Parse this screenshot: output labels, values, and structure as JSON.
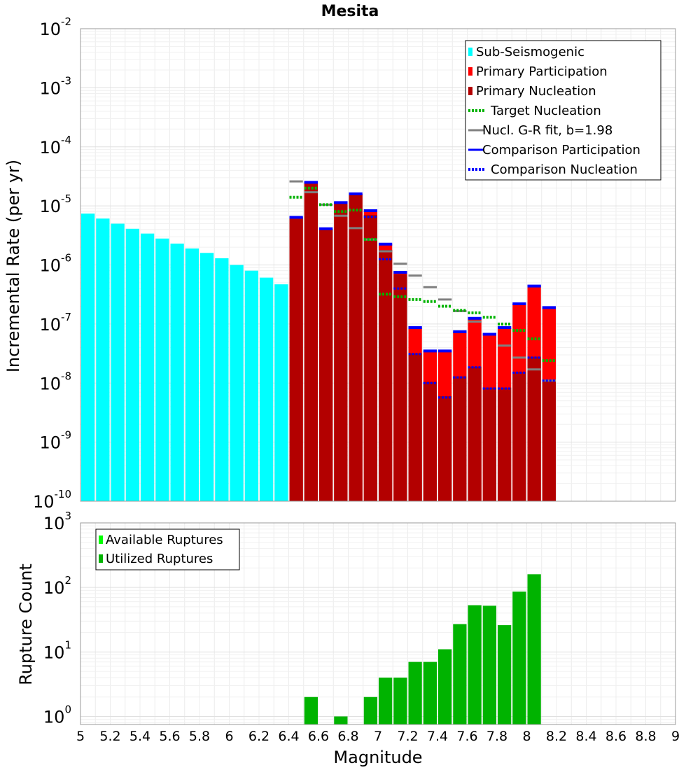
{
  "colors": {
    "sub_seismogenic": "#00ffff",
    "primary_participation": "#ff0000",
    "primary_nucleation": "#b30000",
    "target_nucleation": "#00b300",
    "gr_fit": "#808080",
    "comparison_participation": "#0000ff",
    "comparison_nucleation": "#0000ff",
    "available_ruptures": "#00ff00",
    "utilized_ruptures": "#00b300"
  },
  "chart_data": [
    {
      "type": "bar",
      "title": "Mesita",
      "xlabel": "",
      "ylabel": "Incremental Rate (per yr)",
      "yscale": "log",
      "ylim": [
        1e-10,
        0.01
      ],
      "xlim": [
        5,
        9
      ],
      "bin_width": 0.1,
      "ytick_labels": [
        {
          "base": "10",
          "exp": "-10",
          "value": 1e-10
        },
        {
          "base": "10",
          "exp": "-9",
          "value": 1e-09
        },
        {
          "base": "10",
          "exp": "-8",
          "value": 1e-08
        },
        {
          "base": "10",
          "exp": "-7",
          "value": 1e-07
        },
        {
          "base": "10",
          "exp": "-6",
          "value": 1e-06
        },
        {
          "base": "10",
          "exp": "-5",
          "value": 1e-05
        },
        {
          "base": "10",
          "exp": "-4",
          "value": 0.0001
        },
        {
          "base": "10",
          "exp": "-3",
          "value": 0.001
        },
        {
          "base": "10",
          "exp": "-2",
          "value": 0.01
        }
      ],
      "legend": {
        "position": "top-right",
        "entries": [
          {
            "label": "Sub-Seismogenic",
            "style": "bar",
            "color_key": "sub_seismogenic"
          },
          {
            "label": "Primary Participation",
            "style": "bar",
            "color_key": "primary_participation"
          },
          {
            "label": "Primary Nucleation",
            "style": "bar",
            "color_key": "primary_nucleation"
          },
          {
            "label": "Target Nucleation",
            "style": "dotted",
            "color_key": "target_nucleation"
          },
          {
            "label": "Nucl. G-R fit, b=1.98",
            "style": "solid",
            "color_key": "gr_fit"
          },
          {
            "label": "Comparison Participation",
            "style": "solid",
            "color_key": "comparison_participation"
          },
          {
            "label": "Comparison Nucleation",
            "style": "dotted",
            "color_key": "comparison_nucleation"
          }
        ]
      },
      "series": [
        {
          "name": "Sub-Seismogenic",
          "x": [
            5.05,
            5.15,
            5.25,
            5.35,
            5.45,
            5.55,
            5.65,
            5.75,
            5.85,
            5.95,
            6.05,
            6.15,
            6.25,
            6.35
          ],
          "values": [
            7.4e-06,
            6.1e-06,
            5e-06,
            4.1e-06,
            3.4e-06,
            2.8e-06,
            2.3e-06,
            1.9e-06,
            1.6e-06,
            1.3e-06,
            1e-06,
            8e-07,
            6.1e-07,
            4.7e-07
          ]
        },
        {
          "name": "Primary Participation",
          "x": [
            6.45,
            6.55,
            6.65,
            6.75,
            6.85,
            6.95,
            7.05,
            7.15,
            7.25,
            7.35,
            7.45,
            7.55,
            7.65,
            7.75,
            7.85,
            7.95,
            8.05,
            8.15
          ],
          "values": [
            6.4e-06,
            2.5e-05,
            4.1e-06,
            1.14e-05,
            1.6e-05,
            8.3e-06,
            2.25e-06,
            7.5e-07,
            8.7e-08,
            3.5e-08,
            3.5e-08,
            7.4e-08,
            1.25e-07,
            6.7e-08,
            8.7e-08,
            2.2e-07,
            4.4e-07,
            1.9e-07
          ]
        },
        {
          "name": "Primary Nucleation",
          "x": [
            6.45,
            6.55,
            6.65,
            6.75,
            6.85,
            6.95,
            7.05,
            7.15,
            7.25,
            7.35,
            7.45,
            7.55,
            7.65,
            7.75,
            7.85,
            7.95,
            8.05,
            8.15
          ],
          "values": [
            6.4e-06,
            2.5e-05,
            4.1e-06,
            1.14e-05,
            1.6e-05,
            7e-06,
            1.8e-06,
            7e-07,
            3.2e-08,
            1.05e-08,
            6e-09,
            1.3e-08,
            1.9e-08,
            8.4e-09,
            8.4e-09,
            1.55e-08,
            2.8e-08,
            1.15e-08
          ]
        },
        {
          "name": "Target Nucleation",
          "x": [
            6.45,
            6.55,
            6.65,
            6.75,
            6.85,
            6.95,
            7.05,
            7.15,
            7.25,
            7.35,
            7.45,
            7.55,
            7.65,
            7.75,
            7.85,
            7.95,
            8.05,
            8.15
          ],
          "values": [
            1.4e-05,
            2e-05,
            1.05e-05,
            8e-06,
            8.5e-06,
            2.7e-06,
            3.2e-07,
            2.9e-07,
            2.6e-07,
            2.4e-07,
            2e-07,
            1.7e-07,
            1.55e-07,
            1.3e-07,
            1e-07,
            7.8e-08,
            5.6e-08,
            2.4e-08
          ]
        },
        {
          "name": "Nucl. G-R fit, b=1.98",
          "x": [
            6.45,
            6.55,
            6.65,
            6.75,
            6.85,
            6.95,
            7.05,
            7.15,
            7.25,
            7.35,
            7.45,
            7.55,
            7.65,
            7.75,
            7.85,
            7.95,
            8.05,
            8.15
          ],
          "values": [
            2.6e-05,
            1.7e-05,
            1.05e-05,
            6.8e-06,
            4.2e-06,
            2.7e-06,
            1.7e-06,
            1.05e-06,
            6.6e-07,
            4.2e-07,
            2.6e-07,
            1.65e-07,
            1.1e-07,
            6.7e-08,
            4.3e-08,
            2.7e-08,
            1.7e-08,
            1.1e-08
          ]
        },
        {
          "name": "Comparison Participation",
          "x": [
            6.45,
            6.55,
            6.65,
            6.75,
            6.85,
            6.95,
            7.05,
            7.15,
            7.25,
            7.35,
            7.45,
            7.55,
            7.65,
            7.75,
            7.85,
            7.95,
            8.05,
            8.15
          ],
          "values": [
            6.4e-06,
            2.5e-05,
            4.1e-06,
            1.14e-05,
            1.6e-05,
            8.3e-06,
            2.25e-06,
            7.5e-07,
            8.7e-08,
            3.5e-08,
            3.5e-08,
            7.4e-08,
            1.25e-07,
            6.7e-08,
            8.7e-08,
            2.2e-07,
            4.4e-07,
            1.9e-07
          ]
        },
        {
          "name": "Comparison Nucleation",
          "x": [
            6.45,
            6.55,
            6.65,
            6.75,
            6.85,
            6.95,
            7.05,
            7.15,
            7.25,
            7.35,
            7.45,
            7.55,
            7.65,
            7.75,
            7.85,
            7.95,
            8.05,
            8.15
          ],
          "values": [
            6.4e-06,
            2.5e-05,
            4.1e-06,
            1.14e-05,
            1.6e-05,
            6.5e-06,
            1.25e-06,
            4e-07,
            3.1e-08,
            1e-08,
            5.7e-09,
            1.25e-08,
            1.85e-08,
            8.1e-09,
            8.1e-09,
            1.5e-08,
            2.7e-08,
            1.1e-08
          ]
        }
      ]
    },
    {
      "type": "bar",
      "title": "",
      "xlabel": "Magnitude",
      "ylabel": "Rupture Count",
      "yscale": "log",
      "ylim": [
        0.75,
        1000
      ],
      "xlim": [
        5,
        9
      ],
      "bin_width": 0.1,
      "xtick_labels": [
        "5",
        "5.2",
        "5.4",
        "5.6",
        "5.8",
        "6",
        "6.2",
        "6.4",
        "6.6",
        "6.8",
        "7",
        "7.2",
        "7.4",
        "7.6",
        "7.8",
        "8",
        "8.2",
        "8.4",
        "8.6",
        "8.8",
        "9"
      ],
      "ytick_labels": [
        {
          "base": "10",
          "exp": "0",
          "value": 1
        },
        {
          "base": "10",
          "exp": "1",
          "value": 10
        },
        {
          "base": "10",
          "exp": "2",
          "value": 100
        },
        {
          "base": "10",
          "exp": "3",
          "value": 1000
        }
      ],
      "legend": {
        "position": "top-left",
        "entries": [
          {
            "label": "Available Ruptures",
            "style": "bar",
            "color_key": "available_ruptures"
          },
          {
            "label": "Utilized Ruptures",
            "style": "bar",
            "color_key": "utilized_ruptures"
          }
        ]
      },
      "series": [
        {
          "name": "Utilized Ruptures",
          "x": [
            6.55,
            6.75,
            6.95,
            7.05,
            7.15,
            7.25,
            7.35,
            7.45,
            7.55,
            7.65,
            7.75,
            7.85,
            7.95,
            8.05
          ],
          "values": [
            2,
            1,
            2,
            4,
            4,
            7,
            7,
            11,
            27,
            53,
            52,
            26,
            86,
            160
          ]
        }
      ]
    }
  ]
}
